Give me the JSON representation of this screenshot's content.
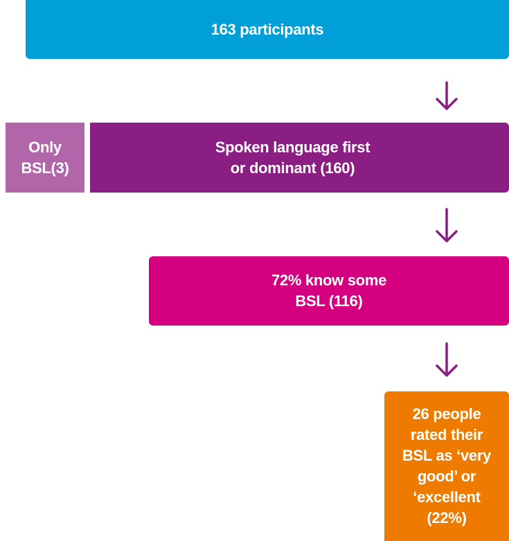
{
  "nodes": [
    {
      "lines": [
        "163 participants"
      ]
    },
    {
      "lines": [
        "Only",
        "BSL(3)"
      ]
    },
    {
      "lines": [
        "Spoken language first",
        "or dominant (160)"
      ]
    },
    {
      "lines": [
        "72% know some",
        "BSL (116)"
      ]
    },
    {
      "lines": [
        "26 people",
        "rated their",
        "BSL as ‘very",
        "good’ or",
        "‘excellent",
        "(22%)"
      ]
    }
  ]
}
